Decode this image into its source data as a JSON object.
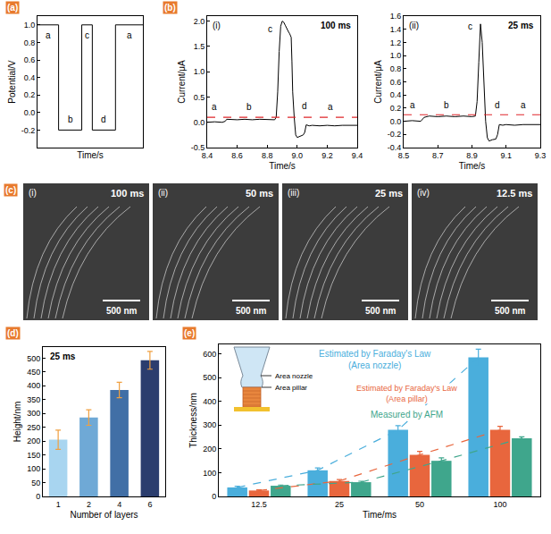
{
  "chart_data": [
    {
      "label": "(a)",
      "type": "line",
      "x_label": "Time/s",
      "y_label": "Potential/V",
      "tick_labels": "y",
      "grid": false,
      "xlim": [
        0,
        1
      ],
      "xticks": [],
      "ylim": [
        -0.4,
        1.1
      ],
      "yticks": [
        -0.2,
        {
          "value": 0,
          "label": "0.0"
        },
        0.2,
        0.4,
        0.6,
        0.8,
        {
          "value": 1,
          "label": "1.0"
        }
      ],
      "series": [
        {
          "color": "#000000",
          "x": [
            0,
            0.2,
            0.2,
            0.42,
            0.42,
            0.52,
            0.52,
            0.74,
            0.74,
            1
          ],
          "values": [
            1,
            1,
            -0.2,
            -0.2,
            1,
            1,
            -0.2,
            -0.2,
            1,
            1
          ]
        }
      ],
      "annotations": [
        {
          "text": "a",
          "x": 0.1,
          "y": 0.88
        },
        {
          "text": "b",
          "x": 0.31,
          "y": -0.08
        },
        {
          "text": "c",
          "x": 0.47,
          "y": 0.88
        },
        {
          "text": "d",
          "x": 0.63,
          "y": -0.08
        },
        {
          "text": "a",
          "x": 0.87,
          "y": 0.88
        }
      ]
    },
    {
      "label": "(b)",
      "sublabel": "(i)",
      "title": "100 ms",
      "type": "line",
      "x_label": "Time/s",
      "y_label": "Current/μA",
      "grid": false,
      "xlim": [
        8.4,
        9.4
      ],
      "xticks": [
        8.4,
        8.6,
        8.8,
        {
          "value": 9,
          "label": "9.0"
        },
        9.2,
        9.4
      ],
      "ylim": [
        -0.5,
        2.1
      ],
      "yticks": [
        -0.5,
        {
          "value": 0,
          "label": "0.0"
        },
        0.5,
        {
          "value": 1,
          "label": "1.0"
        },
        1.5,
        {
          "value": 2,
          "label": "2.0"
        }
      ],
      "series": [
        {
          "color": "#000000",
          "x": [
            8.4,
            8.45,
            8.5,
            8.52,
            8.53,
            8.6,
            8.65,
            8.7,
            8.75,
            8.8,
            8.85,
            8.86,
            8.87,
            8.88,
            8.89,
            8.9,
            8.91,
            8.92,
            8.93,
            8.94,
            8.95,
            8.96,
            8.965,
            8.97,
            8.98,
            8.99,
            9.0,
            9.02,
            9.04,
            9.05,
            9.06,
            9.08,
            9.1,
            9.15,
            9.2,
            9.25,
            9.3,
            9.4
          ],
          "values": [
            0.0,
            0.01,
            0.0,
            0.02,
            0.06,
            0.05,
            0.06,
            0.05,
            0.06,
            0.05,
            0.05,
            0.1,
            0.6,
            1.4,
            1.9,
            2.0,
            1.98,
            1.92,
            1.85,
            1.8,
            1.75,
            1.68,
            1.2,
            0.6,
            0.1,
            -0.25,
            -0.3,
            -0.28,
            -0.25,
            -0.2,
            -0.05,
            -0.07,
            -0.06,
            -0.07,
            -0.06,
            -0.07,
            -0.06,
            -0.06
          ]
        },
        {
          "color": "#e0262b",
          "line_style": "dashed",
          "x": [
            8.4,
            9.4
          ],
          "values": [
            0.1,
            0.1
          ]
        }
      ],
      "annotations": [
        {
          "text": "a",
          "x": 8.45,
          "y": 0.3
        },
        {
          "text": "b",
          "x": 8.68,
          "y": 0.3
        },
        {
          "text": "c",
          "x": 8.82,
          "y": 1.85
        },
        {
          "text": "d",
          "x": 9.05,
          "y": 0.32
        },
        {
          "text": "a",
          "x": 9.22,
          "y": 0.3
        }
      ]
    },
    {
      "sublabel": "(ii)",
      "title": "25 ms",
      "type": "line",
      "x_label": "Time/s",
      "y_label": "Current/μA",
      "grid": false,
      "xlim": [
        8.5,
        9.3
      ],
      "xticks": [
        8.5,
        8.7,
        8.9,
        9.1,
        9.3
      ],
      "ylim": [
        -0.4,
        1.6
      ],
      "yticks": [
        -0.4,
        -0.2,
        {
          "value": 0,
          "label": "0.0"
        },
        0.2,
        0.4,
        0.6,
        0.8,
        {
          "value": 1,
          "label": "1.0"
        },
        1.2,
        1.4,
        1.6
      ],
      "series": [
        {
          "color": "#000000",
          "x": [
            8.5,
            8.55,
            8.6,
            8.62,
            8.65,
            8.7,
            8.75,
            8.8,
            8.85,
            8.9,
            8.92,
            8.93,
            8.94,
            8.95,
            8.96,
            8.97,
            8.98,
            8.99,
            9.0,
            9.02,
            9.04,
            9.05,
            9.06,
            9.08,
            9.1,
            9.15,
            9.2,
            9.3
          ],
          "values": [
            0.0,
            0.01,
            0.0,
            0.06,
            0.08,
            0.07,
            0.08,
            0.07,
            0.08,
            0.07,
            0.08,
            0.3,
            0.9,
            1.48,
            1.2,
            0.5,
            0.0,
            -0.25,
            -0.3,
            -0.28,
            -0.27,
            -0.2,
            -0.05,
            -0.06,
            -0.05,
            -0.06,
            -0.05,
            -0.05
          ]
        },
        {
          "color": "#e0262b",
          "line_style": "dashed",
          "x": [
            8.5,
            9.3
          ],
          "values": [
            0.1,
            0.1
          ]
        }
      ],
      "annotations": [
        {
          "text": "a",
          "x": 8.55,
          "y": 0.24
        },
        {
          "text": "b",
          "x": 8.75,
          "y": 0.24
        },
        {
          "text": "c",
          "x": 8.89,
          "y": 1.45
        },
        {
          "text": "d",
          "x": 9.05,
          "y": 0.24
        },
        {
          "text": "a",
          "x": 9.2,
          "y": 0.24
        }
      ]
    },
    {
      "label": "(d)",
      "title": "25 ms",
      "type": "bar",
      "x_label": "Number of layers",
      "y_label": "Height/nm",
      "grid": false,
      "categories": [
        "1",
        "2",
        "4",
        "6"
      ],
      "values": [
        205,
        285,
        385,
        492
      ],
      "errors": [
        35,
        28,
        28,
        32
      ],
      "colors": [
        "#a8d5f0",
        "#6fa9d6",
        "#416fa6",
        "#2b3d6e"
      ],
      "ylim": [
        0,
        540
      ],
      "yticks": [
        0,
        50,
        100,
        150,
        200,
        250,
        300,
        350,
        400,
        450,
        500
      ]
    },
    {
      "label": "(e)",
      "type": "bar",
      "x_label": "Time/ms",
      "y_label": "Thickness/nm",
      "grid": false,
      "categories": [
        "12.5",
        "25",
        "50",
        "100"
      ],
      "ylim": [
        0,
        640
      ],
      "yticks": [
        0,
        100,
        200,
        300,
        400,
        500,
        600
      ],
      "series": [
        {
          "name": "Estimated by Faraday's Law (Area nozzle)",
          "color": "#4aaedc",
          "line_style": "dashed",
          "values": [
            38,
            110,
            280,
            585
          ],
          "errors": [
            5,
            10,
            18,
            35
          ]
        },
        {
          "name": "Estimated by Faraday's Law (Area pillar)",
          "color": "#e8663d",
          "line_style": "dashed",
          "values": [
            25,
            65,
            175,
            280
          ],
          "errors": [
            3,
            6,
            15,
            15
          ]
        },
        {
          "name": "Measured by AFM",
          "color": "#3fa68c",
          "line_style": "dashed",
          "values": [
            45,
            60,
            150,
            245
          ],
          "errors": [
            3,
            4,
            12,
            6
          ]
        }
      ],
      "inset_labels": [
        "Area nozzle",
        "Area pillar"
      ]
    }
  ],
  "micrographs": {
    "label": "(c)",
    "panels": [
      {
        "label": "(i)",
        "text": "100 ms",
        "scale_bar": "500 nm"
      },
      {
        "label": "(ii)",
        "text": "50 ms",
        "scale_bar": "500 nm"
      },
      {
        "label": "(iii)",
        "text": "25 ms",
        "scale_bar": "500 nm"
      },
      {
        "label": "(iv)",
        "text": "12.5 ms",
        "scale_bar": "500 nm"
      }
    ]
  }
}
